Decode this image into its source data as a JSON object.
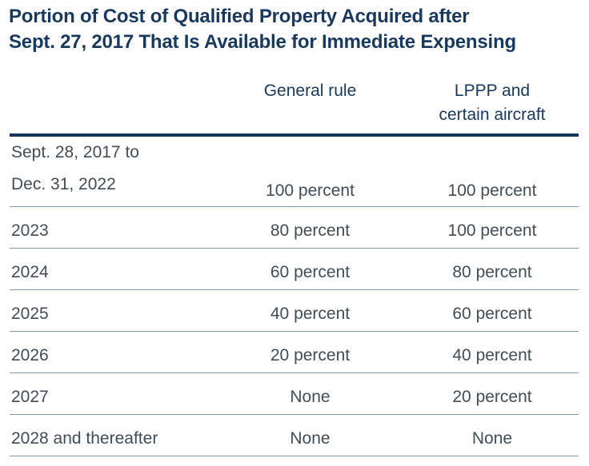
{
  "title": {
    "line1": "Portion of Cost of Qualified Property Acquired after",
    "line2": "Sept. 27, 2017 That Is Available for Immediate Expensing"
  },
  "header": {
    "general_rule": "General rule",
    "lppp_line1": "LPPP and",
    "lppp_line2": "certain aircraft"
  },
  "table": {
    "rows": [
      {
        "label_line1": "Sept. 28, 2017 to",
        "label_line2": "Dec. 31, 2022",
        "general": "100 percent",
        "lppp": "100 percent"
      },
      {
        "label": "2023",
        "general": "80 percent",
        "lppp": "100 percent"
      },
      {
        "label": "2024",
        "general": "60 percent",
        "lppp": "80 percent"
      },
      {
        "label": "2025",
        "general": "40 percent",
        "lppp": "60 percent"
      },
      {
        "label": "2026",
        "general": "20 percent",
        "lppp": "40 percent"
      },
      {
        "label": "2027",
        "general": "None",
        "lppp": "20 percent"
      },
      {
        "label": "2028 and thereafter",
        "general": "None",
        "lppp": "None"
      }
    ]
  },
  "colors": {
    "navy": "#17395f",
    "body_text": "#414d57",
    "divider": "#7f9db2",
    "thick_rule": "#14365c",
    "background": "#ffffff"
  },
  "chart_data": {
    "type": "table",
    "title": "Portion of Cost of Qualified Property Acquired after Sept. 27, 2017 That Is Available for Immediate Expensing",
    "columns": [
      "",
      "General rule",
      "LPPP and certain aircraft"
    ],
    "rows": [
      [
        "Sept. 28, 2017 to Dec. 31, 2022",
        "100 percent",
        "100 percent"
      ],
      [
        "2023",
        "80 percent",
        "100 percent"
      ],
      [
        "2024",
        "60 percent",
        "80 percent"
      ],
      [
        "2025",
        "40 percent",
        "60 percent"
      ],
      [
        "2026",
        "20 percent",
        "40 percent"
      ],
      [
        "2027",
        "None",
        "20 percent"
      ],
      [
        "2028 and thereafter",
        "None",
        "None"
      ]
    ]
  }
}
